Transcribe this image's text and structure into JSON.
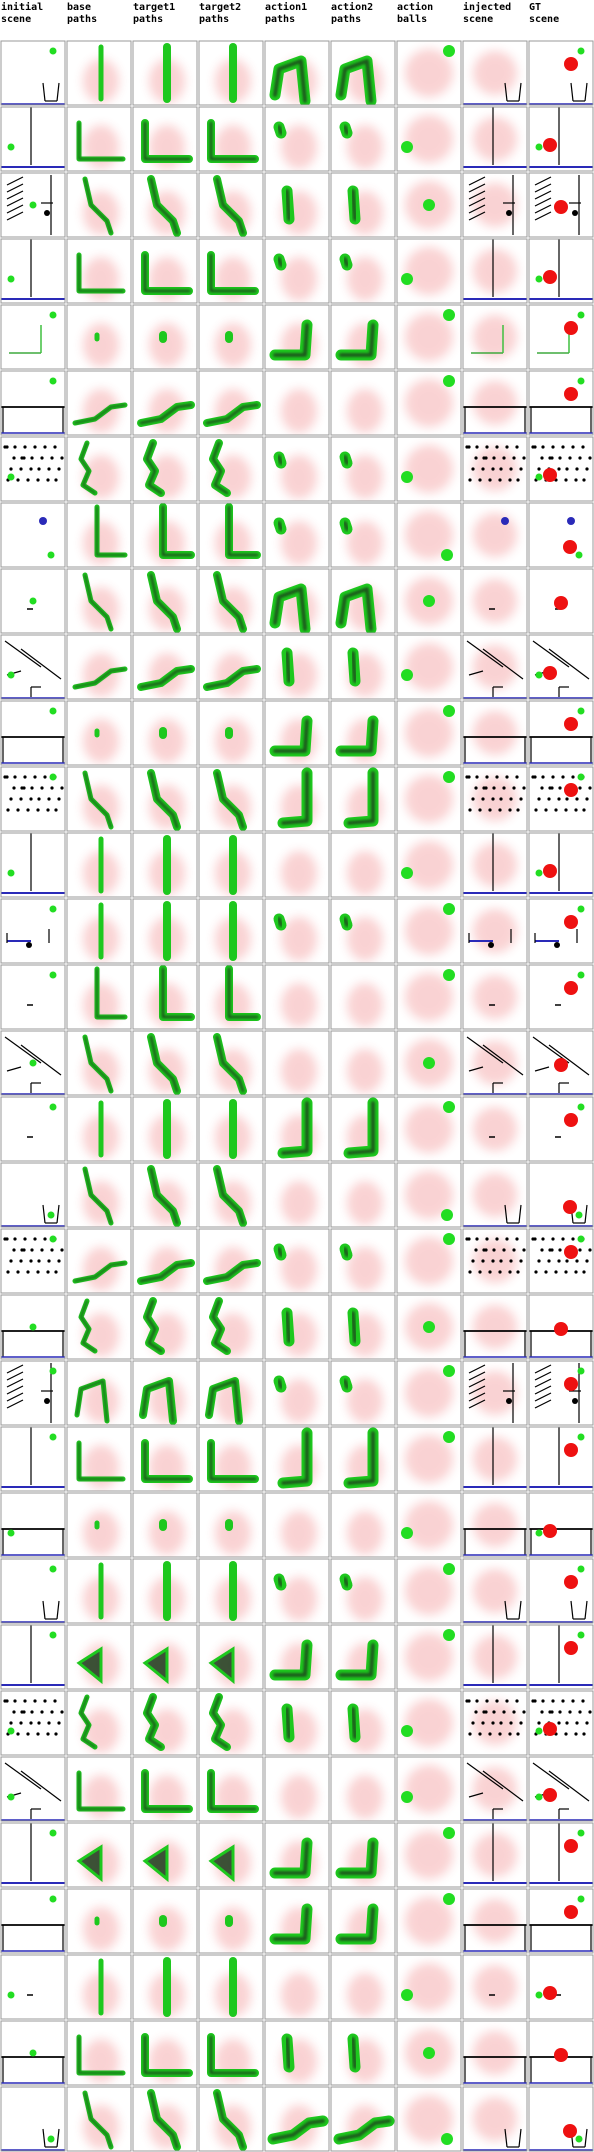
{
  "columns": [
    {
      "key": "initial",
      "label": "initial\nscene"
    },
    {
      "key": "base",
      "label": "base\npaths"
    },
    {
      "key": "t1",
      "label": "target1\npaths"
    },
    {
      "key": "t2",
      "label": "target2\npaths"
    },
    {
      "key": "a1",
      "label": "action1\npaths"
    },
    {
      "key": "a2",
      "label": "action2\npaths"
    },
    {
      "key": "balls",
      "label": "action\nballs"
    },
    {
      "key": "injected",
      "label": "injected\nscene"
    },
    {
      "key": "gt",
      "label": "GT\nscene"
    }
  ],
  "colors": {
    "border": "#9a9a9a",
    "path_green": "#1ec81e",
    "path_dark": "#1a3a1a",
    "heat_red": "#e8383a",
    "scene_blue": "#2a2ab8",
    "scene_black": "#000000",
    "ball_green": "#22dd22",
    "ball_red": "#ee1111"
  },
  "rows": [
    {
      "scene": "cup",
      "path": "vert",
      "action": "hook",
      "ball": "tr"
    },
    {
      "scene": "wall",
      "path": "corner",
      "action": "blob",
      "ball": "ml"
    },
    {
      "scene": "stairs",
      "path": "diag",
      "action": "short",
      "ball": "mc"
    },
    {
      "scene": "wall",
      "path": "corner",
      "action": "blob",
      "ball": "ml"
    },
    {
      "scene": "bracket",
      "path": "dot",
      "action": "lshape",
      "ball": "tr"
    },
    {
      "scene": "floor",
      "path": "curve",
      "action": "haze",
      "ball": "tr"
    },
    {
      "scene": "dots",
      "path": "wave",
      "action": "blob",
      "ball": "ml"
    },
    {
      "scene": "twoballs",
      "path": "lrev",
      "action": "blob",
      "ball": "br"
    },
    {
      "scene": "dash",
      "path": "diag",
      "action": "hook",
      "ball": "mc"
    },
    {
      "scene": "slopes",
      "path": "curve",
      "action": "short",
      "ball": "ml"
    },
    {
      "scene": "floor",
      "path": "dot",
      "action": "lshape",
      "ball": "tr"
    },
    {
      "scene": "dots",
      "path": "diag",
      "action": "jshape",
      "ball": "tr"
    },
    {
      "scene": "wall",
      "path": "vert",
      "action": "haze",
      "ball": "ml"
    },
    {
      "scene": "blueline",
      "path": "vert",
      "action": "blob",
      "ball": "tr"
    },
    {
      "scene": "dash",
      "path": "lrev",
      "action": "haze",
      "ball": "tr"
    },
    {
      "scene": "slopes",
      "path": "diag",
      "action": "haze",
      "ball": "mc"
    },
    {
      "scene": "dash",
      "path": "vert",
      "action": "jshape",
      "ball": "tr"
    },
    {
      "scene": "cup",
      "path": "diag",
      "action": "haze",
      "ball": "br"
    },
    {
      "scene": "dots",
      "path": "curve",
      "action": "blob",
      "ball": "tr"
    },
    {
      "scene": "floor",
      "path": "wave",
      "action": "short",
      "ball": "mc"
    },
    {
      "scene": "stairs",
      "path": "hook",
      "action": "blob",
      "ball": "tr"
    },
    {
      "scene": "wall",
      "path": "corner",
      "action": "jshape",
      "ball": "tr"
    },
    {
      "scene": "floor",
      "path": "dot",
      "action": "haze",
      "ball": "ml"
    },
    {
      "scene": "cup",
      "path": "vert",
      "action": "blob",
      "ball": "tr"
    },
    {
      "scene": "wall",
      "path": "triangle",
      "action": "lshape",
      "ball": "tr"
    },
    {
      "scene": "dots",
      "path": "wave",
      "action": "short",
      "ball": "ml"
    },
    {
      "scene": "slopes",
      "path": "corner",
      "action": "haze",
      "ball": "ml"
    },
    {
      "scene": "wall",
      "path": "triangle",
      "action": "lshape",
      "ball": "tr"
    },
    {
      "scene": "floor",
      "path": "dot",
      "action": "lshape",
      "ball": "tr"
    },
    {
      "scene": "dash",
      "path": "vert",
      "action": "haze",
      "ball": "ml"
    },
    {
      "scene": "floor",
      "path": "corner",
      "action": "short",
      "ball": "mc"
    },
    {
      "scene": "cup",
      "path": "diag",
      "action": "curve",
      "ball": "br"
    }
  ]
}
